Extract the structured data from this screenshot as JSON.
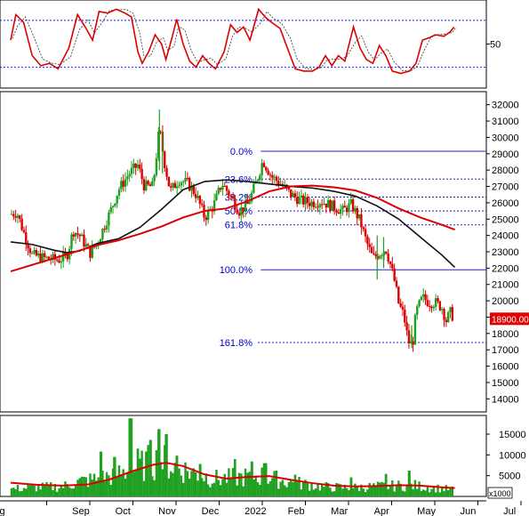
{
  "chart_data": {
    "type": "candlestick",
    "x_axis": {
      "labels": [
        "Aug",
        "Sep",
        "Oct",
        "Nov",
        "Dec",
        "2022",
        "Feb",
        "Mar",
        "Apr",
        "May",
        "Jun",
        "Jul"
      ]
    },
    "stochastic_panel": {
      "axis_label": "50",
      "reference_levels": [
        80,
        20
      ],
      "ylim": [
        0,
        100
      ],
      "k_line": [
        {
          "m": 0.0,
          "v": 55
        },
        {
          "m": 0.12,
          "v": 88
        },
        {
          "m": 0.3,
          "v": 78
        },
        {
          "m": 0.5,
          "v": 35
        },
        {
          "m": 0.7,
          "v": 22
        },
        {
          "m": 0.9,
          "v": 25
        },
        {
          "m": 1.1,
          "v": 18
        },
        {
          "m": 1.35,
          "v": 45
        },
        {
          "m": 1.55,
          "v": 88
        },
        {
          "m": 1.75,
          "v": 70
        },
        {
          "m": 1.9,
          "v": 55
        },
        {
          "m": 2.05,
          "v": 92
        },
        {
          "m": 2.25,
          "v": 90
        },
        {
          "m": 2.45,
          "v": 95
        },
        {
          "m": 2.65,
          "v": 90
        },
        {
          "m": 2.8,
          "v": 85
        },
        {
          "m": 2.95,
          "v": 40
        },
        {
          "m": 3.05,
          "v": 25
        },
        {
          "m": 3.2,
          "v": 40
        },
        {
          "m": 3.35,
          "v": 62
        },
        {
          "m": 3.5,
          "v": 50
        },
        {
          "m": 3.6,
          "v": 30
        },
        {
          "m": 3.75,
          "v": 60
        },
        {
          "m": 3.85,
          "v": 82
        },
        {
          "m": 4.0,
          "v": 50
        },
        {
          "m": 4.15,
          "v": 28
        },
        {
          "m": 4.3,
          "v": 20
        },
        {
          "m": 4.45,
          "v": 35
        },
        {
          "m": 4.6,
          "v": 25
        },
        {
          "m": 4.75,
          "v": 18
        },
        {
          "m": 4.95,
          "v": 40
        },
        {
          "m": 5.1,
          "v": 75
        },
        {
          "m": 5.25,
          "v": 65
        },
        {
          "m": 5.4,
          "v": 72
        },
        {
          "m": 5.55,
          "v": 55
        },
        {
          "m": 5.75,
          "v": 95
        },
        {
          "m": 5.9,
          "v": 85
        },
        {
          "m": 6.05,
          "v": 78
        },
        {
          "m": 6.25,
          "v": 70
        },
        {
          "m": 6.45,
          "v": 40
        },
        {
          "m": 6.6,
          "v": 18
        },
        {
          "m": 6.8,
          "v": 15
        },
        {
          "m": 7.0,
          "v": 15
        },
        {
          "m": 7.15,
          "v": 20
        },
        {
          "m": 7.3,
          "v": 35
        },
        {
          "m": 7.45,
          "v": 22
        },
        {
          "m": 7.6,
          "v": 35
        },
        {
          "m": 7.75,
          "v": 28
        },
        {
          "m": 7.95,
          "v": 72
        },
        {
          "m": 8.1,
          "v": 45
        },
        {
          "m": 8.25,
          "v": 30
        },
        {
          "m": 8.4,
          "v": 25
        },
        {
          "m": 8.55,
          "v": 48
        },
        {
          "m": 8.7,
          "v": 35
        },
        {
          "m": 8.85,
          "v": 15
        },
        {
          "m": 9.05,
          "v": 12
        },
        {
          "m": 9.25,
          "v": 15
        },
        {
          "m": 9.4,
          "v": 25
        },
        {
          "m": 9.55,
          "v": 55
        },
        {
          "m": 9.7,
          "v": 58
        },
        {
          "m": 9.85,
          "v": 62
        },
        {
          "m": 10.05,
          "v": 60
        },
        {
          "m": 10.2,
          "v": 66
        },
        {
          "m": 10.28,
          "v": 72
        }
      ]
    },
    "price_panel": {
      "ylim": [
        13200,
        32800
      ],
      "y_ticks": [
        14000,
        15000,
        16000,
        17000,
        18000,
        19000,
        20000,
        21000,
        22000,
        23000,
        24000,
        25000,
        26000,
        27000,
        28000,
        29000,
        30000,
        31000,
        32000
      ],
      "last_price_label": "18900.00",
      "fibonacci": {
        "start_month": 5.8,
        "levels": [
          {
            "label": "0.0%",
            "price": 29150
          },
          {
            "label": "23.6%",
            "price": 27450
          },
          {
            "label": "38.2%",
            "price": 26350
          },
          {
            "label": "50.0%",
            "price": 25500
          },
          {
            "label": "61.8%",
            "price": 24650
          },
          {
            "label": "100.0%",
            "price": 21900
          },
          {
            "label": "161.8%",
            "price": 17450
          }
        ]
      },
      "ma_black": [
        {
          "m": 0.0,
          "v": 23600
        },
        {
          "m": 0.5,
          "v": 23450
        },
        {
          "m": 1.0,
          "v": 23100
        },
        {
          "m": 1.3,
          "v": 22950
        },
        {
          "m": 1.6,
          "v": 23050
        },
        {
          "m": 2.0,
          "v": 23500
        },
        {
          "m": 2.5,
          "v": 23800
        },
        {
          "m": 3.0,
          "v": 24500
        },
        {
          "m": 3.5,
          "v": 25600
        },
        {
          "m": 4.0,
          "v": 26800
        },
        {
          "m": 4.5,
          "v": 27300
        },
        {
          "m": 5.0,
          "v": 27400
        },
        {
          "m": 5.5,
          "v": 27300
        },
        {
          "m": 6.0,
          "v": 27150
        },
        {
          "m": 6.5,
          "v": 27000
        },
        {
          "m": 7.0,
          "v": 26900
        },
        {
          "m": 7.5,
          "v": 26700
        },
        {
          "m": 8.0,
          "v": 26400
        },
        {
          "m": 8.5,
          "v": 25800
        },
        {
          "m": 9.0,
          "v": 25000
        },
        {
          "m": 9.5,
          "v": 23900
        },
        {
          "m": 10.0,
          "v": 22800
        },
        {
          "m": 10.3,
          "v": 22050
        }
      ],
      "ma_red": [
        {
          "m": 0.0,
          "v": 21800
        },
        {
          "m": 0.5,
          "v": 22200
        },
        {
          "m": 1.0,
          "v": 22600
        },
        {
          "m": 1.5,
          "v": 23000
        },
        {
          "m": 2.0,
          "v": 23400
        },
        {
          "m": 2.5,
          "v": 23700
        },
        {
          "m": 3.0,
          "v": 24100
        },
        {
          "m": 3.5,
          "v": 24550
        },
        {
          "m": 4.0,
          "v": 25100
        },
        {
          "m": 4.5,
          "v": 25500
        },
        {
          "m": 5.0,
          "v": 25650
        },
        {
          "m": 5.5,
          "v": 26100
        },
        {
          "m": 6.0,
          "v": 26700
        },
        {
          "m": 6.5,
          "v": 27000
        },
        {
          "m": 7.0,
          "v": 27050
        },
        {
          "m": 7.5,
          "v": 26950
        },
        {
          "m": 8.0,
          "v": 26750
        },
        {
          "m": 8.5,
          "v": 26300
        },
        {
          "m": 9.0,
          "v": 25650
        },
        {
          "m": 9.5,
          "v": 25100
        },
        {
          "m": 10.0,
          "v": 24650
        },
        {
          "m": 10.3,
          "v": 24350
        }
      ],
      "close_path": [
        {
          "m": 0.0,
          "v": 25300
        },
        {
          "m": 0.15,
          "v": 25400
        },
        {
          "m": 0.3,
          "v": 24200
        },
        {
          "m": 0.5,
          "v": 22800
        },
        {
          "m": 0.8,
          "v": 22600
        },
        {
          "m": 1.1,
          "v": 22500
        },
        {
          "m": 1.3,
          "v": 22700
        },
        {
          "m": 1.45,
          "v": 24300
        },
        {
          "m": 1.6,
          "v": 24000
        },
        {
          "m": 1.85,
          "v": 22900
        },
        {
          "m": 2.05,
          "v": 23800
        },
        {
          "m": 2.3,
          "v": 25400
        },
        {
          "m": 2.5,
          "v": 26800
        },
        {
          "m": 2.75,
          "v": 27800
        },
        {
          "m": 2.95,
          "v": 28300
        },
        {
          "m": 3.1,
          "v": 27000
        },
        {
          "m": 3.3,
          "v": 27000
        },
        {
          "m": 3.45,
          "v": 30600
        },
        {
          "m": 3.55,
          "v": 28700
        },
        {
          "m": 3.7,
          "v": 26700
        },
        {
          "m": 3.9,
          "v": 27400
        },
        {
          "m": 4.1,
          "v": 27200
        },
        {
          "m": 4.3,
          "v": 26500
        },
        {
          "m": 4.5,
          "v": 25100
        },
        {
          "m": 4.7,
          "v": 25800
        },
        {
          "m": 4.9,
          "v": 27200
        },
        {
          "m": 5.1,
          "v": 26400
        },
        {
          "m": 5.3,
          "v": 25500
        },
        {
          "m": 5.5,
          "v": 25900
        },
        {
          "m": 5.7,
          "v": 27300
        },
        {
          "m": 5.85,
          "v": 28600
        },
        {
          "m": 6.05,
          "v": 27600
        },
        {
          "m": 6.25,
          "v": 27200
        },
        {
          "m": 6.5,
          "v": 26500
        },
        {
          "m": 6.75,
          "v": 26100
        },
        {
          "m": 7.0,
          "v": 26000
        },
        {
          "m": 7.2,
          "v": 26100
        },
        {
          "m": 7.45,
          "v": 25800
        },
        {
          "m": 7.7,
          "v": 25500
        },
        {
          "m": 7.9,
          "v": 25900
        },
        {
          "m": 8.1,
          "v": 24900
        },
        {
          "m": 8.25,
          "v": 23600
        },
        {
          "m": 8.4,
          "v": 22600
        },
        {
          "m": 8.55,
          "v": 22900
        },
        {
          "m": 8.7,
          "v": 23200
        },
        {
          "m": 8.82,
          "v": 22100
        },
        {
          "m": 8.92,
          "v": 21000
        },
        {
          "m": 9.0,
          "v": 19800
        },
        {
          "m": 9.12,
          "v": 19100
        },
        {
          "m": 9.22,
          "v": 17500
        },
        {
          "m": 9.32,
          "v": 17300
        },
        {
          "m": 9.4,
          "v": 19300
        },
        {
          "m": 9.55,
          "v": 20200
        },
        {
          "m": 9.7,
          "v": 19900
        },
        {
          "m": 9.85,
          "v": 19900
        },
        {
          "m": 10.0,
          "v": 19600
        },
        {
          "m": 10.1,
          "v": 18800
        },
        {
          "m": 10.2,
          "v": 19300
        },
        {
          "m": 10.28,
          "v": 18900
        }
      ],
      "spikes": [
        {
          "m": 3.45,
          "high": 31700,
          "low": 28000
        },
        {
          "m": 3.52,
          "high": 30400,
          "low": 27800
        },
        {
          "m": 8.5,
          "high": 24000,
          "low": 21300
        },
        {
          "m": 8.65,
          "high": 23900,
          "low": 22000
        },
        {
          "m": 9.3,
          "high": 18500,
          "low": 17100
        }
      ]
    },
    "volume_panel": {
      "unit_label": "x1000",
      "ylim": [
        0,
        19500
      ],
      "y_ticks": [
        5000,
        10000,
        15000
      ],
      "volume_path": [
        {
          "m": 0.0,
          "v": 1800
        },
        {
          "m": 0.6,
          "v": 2200
        },
        {
          "m": 1.2,
          "v": 2400
        },
        {
          "m": 1.6,
          "v": 3600
        },
        {
          "m": 2.0,
          "v": 4200
        },
        {
          "m": 2.4,
          "v": 5200
        },
        {
          "m": 2.8,
          "v": 6300
        },
        {
          "m": 3.2,
          "v": 8200
        },
        {
          "m": 3.5,
          "v": 8600
        },
        {
          "m": 3.8,
          "v": 7200
        },
        {
          "m": 4.3,
          "v": 5500
        },
        {
          "m": 4.8,
          "v": 4200
        },
        {
          "m": 5.3,
          "v": 4600
        },
        {
          "m": 5.8,
          "v": 5000
        },
        {
          "m": 6.3,
          "v": 3800
        },
        {
          "m": 6.8,
          "v": 3000
        },
        {
          "m": 7.3,
          "v": 2300
        },
        {
          "m": 7.8,
          "v": 2100
        },
        {
          "m": 8.3,
          "v": 2300
        },
        {
          "m": 8.8,
          "v": 2500
        },
        {
          "m": 9.3,
          "v": 2700
        },
        {
          "m": 9.8,
          "v": 2100
        },
        {
          "m": 10.3,
          "v": 1600
        }
      ],
      "volume_spikes": [
        {
          "m": 2.1,
          "v": 10800
        },
        {
          "m": 2.4,
          "v": 9500
        },
        {
          "m": 2.78,
          "v": 18800
        },
        {
          "m": 2.95,
          "v": 11500
        },
        {
          "m": 3.25,
          "v": 13600
        },
        {
          "m": 3.45,
          "v": 16200
        },
        {
          "m": 3.6,
          "v": 15000
        },
        {
          "m": 3.85,
          "v": 9800
        },
        {
          "m": 4.4,
          "v": 7800
        },
        {
          "m": 5.2,
          "v": 9000
        },
        {
          "m": 5.6,
          "v": 8400
        },
        {
          "m": 5.9,
          "v": 8000
        },
        {
          "m": 6.6,
          "v": 5200
        },
        {
          "m": 7.9,
          "v": 4600
        },
        {
          "m": 8.7,
          "v": 5400
        },
        {
          "m": 9.25,
          "v": 6200
        }
      ],
      "ma_path": [
        {
          "m": 0.0,
          "v": 3300
        },
        {
          "m": 0.6,
          "v": 2800
        },
        {
          "m": 1.2,
          "v": 2600
        },
        {
          "m": 1.8,
          "v": 2900
        },
        {
          "m": 2.3,
          "v": 4100
        },
        {
          "m": 2.8,
          "v": 6000
        },
        {
          "m": 3.3,
          "v": 7600
        },
        {
          "m": 3.6,
          "v": 8100
        },
        {
          "m": 4.0,
          "v": 7300
        },
        {
          "m": 4.5,
          "v": 5300
        },
        {
          "m": 5.0,
          "v": 4300
        },
        {
          "m": 5.5,
          "v": 4700
        },
        {
          "m": 6.0,
          "v": 4900
        },
        {
          "m": 6.5,
          "v": 4000
        },
        {
          "m": 7.0,
          "v": 3200
        },
        {
          "m": 7.5,
          "v": 2600
        },
        {
          "m": 8.0,
          "v": 2400
        },
        {
          "m": 8.5,
          "v": 2500
        },
        {
          "m": 9.0,
          "v": 2700
        },
        {
          "m": 9.5,
          "v": 2600
        },
        {
          "m": 10.0,
          "v": 2200
        },
        {
          "m": 10.3,
          "v": 2000
        }
      ]
    }
  }
}
